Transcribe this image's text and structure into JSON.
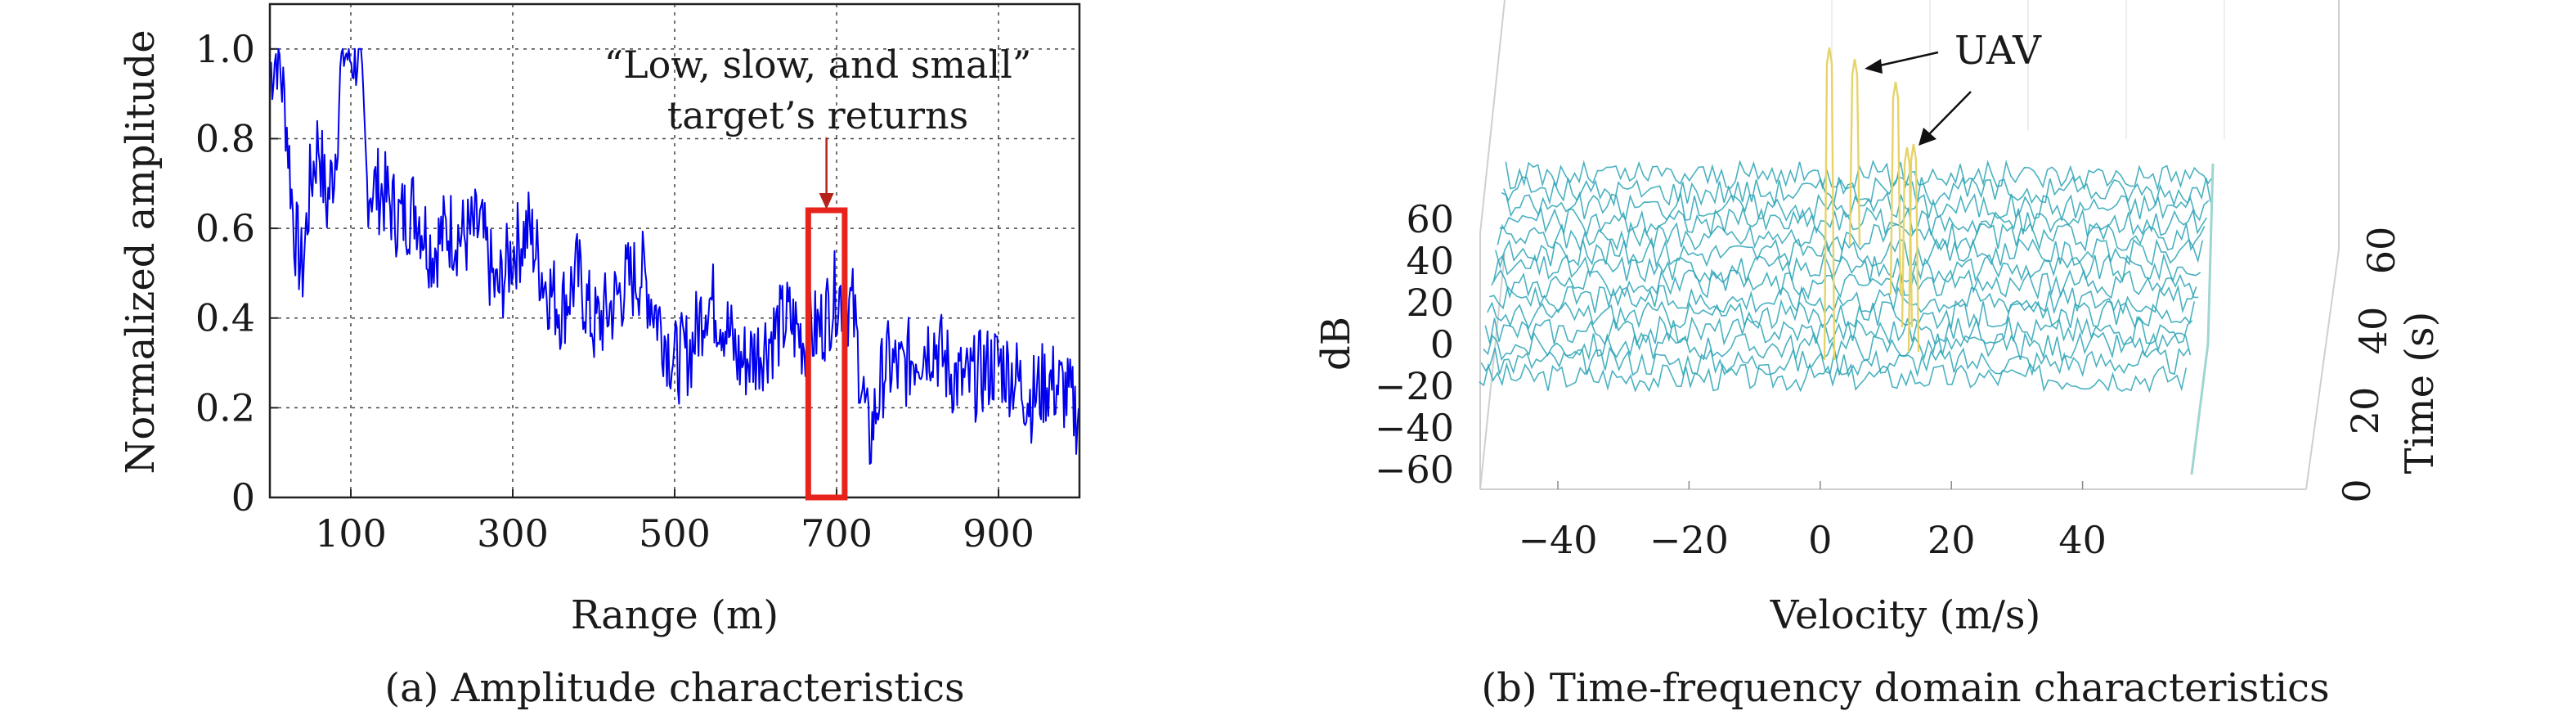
{
  "chart_data": [
    {
      "type": "line",
      "caption": "(a) Amplitude characteristics",
      "xlabel": "Range (m)",
      "ylabel": "Normalized amplitude",
      "xlim": [
        0,
        1000
      ],
      "ylim": [
        0,
        1.1
      ],
      "xticks": [
        100,
        300,
        500,
        700,
        900
      ],
      "xtick_labels": [
        "100",
        "300",
        "500",
        "700",
        "900"
      ],
      "yticks": [
        0,
        0.2,
        0.4,
        0.6,
        0.8,
        1.0
      ],
      "ytick_labels": [
        "0",
        "0.2",
        "0.4",
        "0.6",
        "0.8",
        "1.0"
      ],
      "grid": "dotted",
      "color": "#0000ee",
      "series": [
        {
          "x": [
            0,
            10,
            20,
            30,
            40,
            50,
            60,
            70,
            80,
            90,
            100,
            110,
            120,
            140,
            160,
            180,
            200,
            220,
            240,
            260,
            280,
            300,
            320,
            340,
            360,
            380,
            400,
            420,
            440,
            460,
            480,
            500,
            520,
            540,
            560,
            580,
            600,
            620,
            640,
            660,
            680,
            700,
            720,
            740,
            760,
            780,
            800,
            820,
            840,
            860,
            880,
            900,
            920,
            940,
            960,
            980,
            1000
          ],
          "y": [
            0.95,
            1.0,
            0.85,
            0.6,
            0.5,
            0.7,
            0.8,
            0.65,
            0.75,
            1.0,
            0.98,
            1.0,
            0.7,
            0.68,
            0.62,
            0.65,
            0.55,
            0.6,
            0.58,
            0.6,
            0.45,
            0.55,
            0.6,
            0.48,
            0.42,
            0.5,
            0.38,
            0.42,
            0.48,
            0.5,
            0.4,
            0.3,
            0.33,
            0.45,
            0.4,
            0.3,
            0.32,
            0.36,
            0.4,
            0.35,
            0.38,
            0.46,
            0.42,
            0.12,
            0.3,
            0.28,
            0.33,
            0.35,
            0.28,
            0.25,
            0.28,
            0.3,
            0.27,
            0.22,
            0.26,
            0.24,
            0.18
          ]
        }
      ],
      "highlight": {
        "x_range": [
          665,
          710
        ],
        "color": "#e8231c"
      },
      "annotation": {
        "line1": "“Low, slow, and small”",
        "line2": "target’s returns",
        "arrow_color": "#b5221a"
      }
    },
    {
      "type": "surface",
      "caption": "(b) Time-frequency domain characteristics",
      "xlabel": "Velocity (m/s)",
      "zlabel": "dB",
      "ylabel": "Time (s)",
      "xticks": [
        -40,
        -20,
        0,
        20,
        40
      ],
      "xtick_labels": [
        "−40",
        "−20",
        "0",
        "20",
        "40"
      ],
      "zticks": [
        60,
        40,
        20,
        0,
        -20,
        -40,
        -60
      ],
      "ztick_labels": [
        "60",
        "40",
        "20",
        "0",
        "−20",
        "−40",
        "−60"
      ],
      "yticks": [
        0,
        20,
        40,
        60
      ],
      "ytick_labels": [
        "0",
        "20",
        "40",
        "60"
      ],
      "clutter_color": "#2aa3b5",
      "target_color": "#e6d36a",
      "annotation": "UAV"
    }
  ]
}
